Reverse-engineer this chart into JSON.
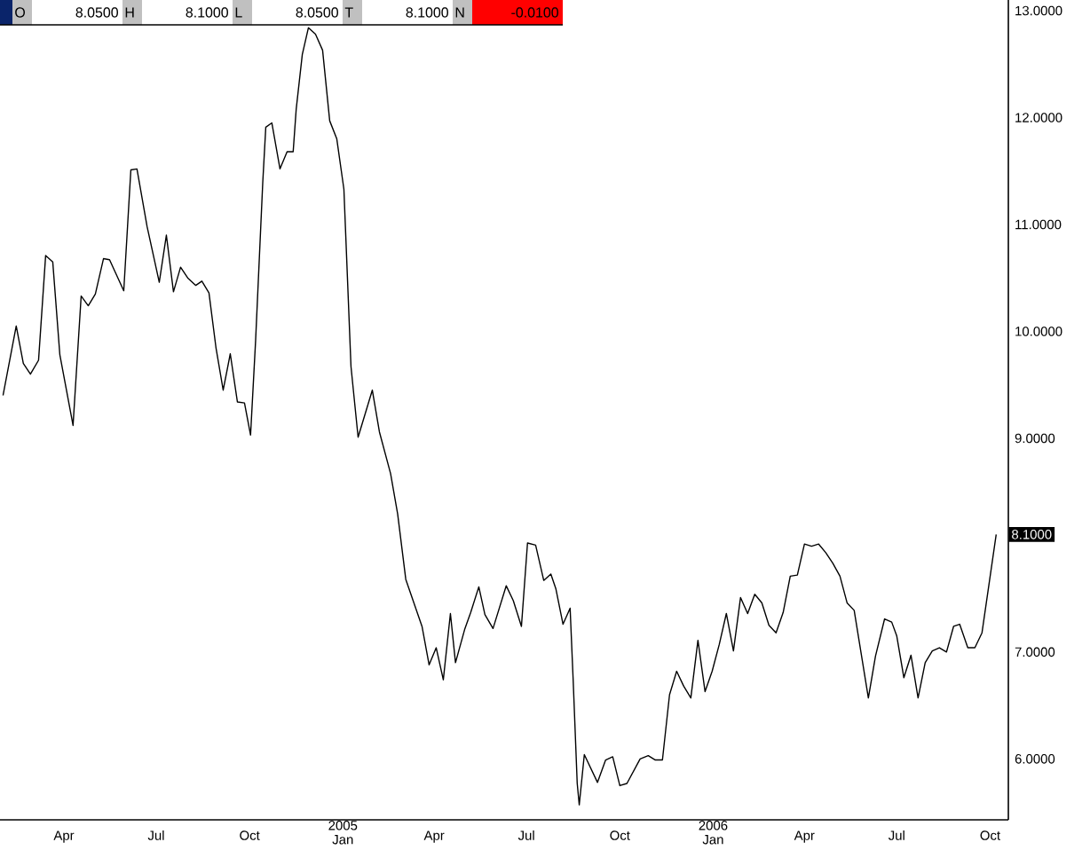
{
  "chart_data": {
    "type": "line",
    "x": [
      "2004-02-01",
      "2004-02-14",
      "2004-02-21",
      "2004-02-28",
      "2004-03-07",
      "2004-03-14",
      "2004-03-21",
      "2004-03-28",
      "2004-04-10",
      "2004-04-18",
      "2004-04-25",
      "2004-05-02",
      "2004-05-10",
      "2004-05-16",
      "2004-05-30",
      "2004-06-06",
      "2004-06-12",
      "2004-06-22",
      "2004-07-04",
      "2004-07-11",
      "2004-07-18",
      "2004-07-25",
      "2004-08-01",
      "2004-08-09",
      "2004-08-15",
      "2004-08-22",
      "2004-08-29",
      "2004-09-05",
      "2004-09-12",
      "2004-09-19",
      "2004-09-26",
      "2004-10-02",
      "2004-10-07",
      "2004-10-14",
      "2004-10-17",
      "2004-10-23",
      "2004-10-31",
      "2004-11-07",
      "2004-11-13",
      "2004-11-16",
      "2004-11-22",
      "2004-11-28",
      "2004-12-05",
      "2004-12-12",
      "2004-12-19",
      "2004-12-26",
      "2005-01-02",
      "2005-01-09",
      "2005-01-16",
      "2005-01-30",
      "2005-02-06",
      "2005-02-17",
      "2005-02-24",
      "2005-03-04",
      "2005-03-20",
      "2005-03-27",
      "2005-04-03",
      "2005-04-10",
      "2005-04-17",
      "2005-04-22",
      "2005-05-01",
      "2005-05-07",
      "2005-05-15",
      "2005-05-21",
      "2005-05-29",
      "2005-06-11",
      "2005-06-18",
      "2005-06-26",
      "2005-07-02",
      "2005-07-10",
      "2005-07-18",
      "2005-07-25",
      "2005-07-30",
      "2005-08-06",
      "2005-08-13",
      "2005-08-16",
      "2005-08-20",
      "2005-08-22",
      "2005-08-27",
      "2005-09-09",
      "2005-09-17",
      "2005-09-24",
      "2005-10-01",
      "2005-10-08",
      "2005-10-21",
      "2005-10-29",
      "2005-11-05",
      "2005-11-12",
      "2005-11-19",
      "2005-11-26",
      "2005-12-03",
      "2005-12-10",
      "2005-12-17",
      "2005-12-24",
      "2005-12-31",
      "2006-01-07",
      "2006-01-14",
      "2006-01-21",
      "2006-01-28",
      "2006-02-04",
      "2006-02-11",
      "2006-02-18",
      "2006-02-25",
      "2006-03-04",
      "2006-03-11",
      "2006-03-18",
      "2006-03-25",
      "2006-04-01",
      "2006-04-08",
      "2006-04-15",
      "2006-04-22",
      "2006-04-29",
      "2006-05-06",
      "2006-05-13",
      "2006-05-20",
      "2006-06-03",
      "2006-06-10",
      "2006-06-19",
      "2006-06-26",
      "2006-07-01",
      "2006-07-08",
      "2006-07-15",
      "2006-07-22",
      "2006-07-29",
      "2006-08-05",
      "2006-08-12",
      "2006-08-19",
      "2006-08-26",
      "2006-09-01",
      "2006-09-09",
      "2006-09-16",
      "2006-09-23",
      "2006-10-07"
    ],
    "series": [
      {
        "color": "#000000",
        "values": [
          9.4,
          10.05,
          9.7,
          9.6,
          9.73,
          10.71,
          10.65,
          9.78,
          9.12,
          10.33,
          10.24,
          10.35,
          10.68,
          10.67,
          10.38,
          11.51,
          11.52,
          10.98,
          10.46,
          10.9,
          10.37,
          10.6,
          10.5,
          10.43,
          10.47,
          10.36,
          9.84,
          9.45,
          9.79,
          9.34,
          9.33,
          9.03,
          9.92,
          11.39,
          11.91,
          11.95,
          11.52,
          11.68,
          11.68,
          12.08,
          12.59,
          12.84,
          12.78,
          12.63,
          11.97,
          11.8,
          11.33,
          9.67,
          9.01,
          9.45,
          9.06,
          8.67,
          8.29,
          7.68,
          7.24,
          6.88,
          7.04,
          6.74,
          7.36,
          6.9,
          7.21,
          7.37,
          7.61,
          7.35,
          7.22,
          7.62,
          7.48,
          7.24,
          8.02,
          8.0,
          7.67,
          7.73,
          7.59,
          7.26,
          7.41,
          6.74,
          5.77,
          5.57,
          6.04,
          5.78,
          5.99,
          6.02,
          5.75,
          5.77,
          6.0,
          6.03,
          5.99,
          5.99,
          6.6,
          6.82,
          6.68,
          6.57,
          7.11,
          6.63,
          6.82,
          7.07,
          7.36,
          7.01,
          7.51,
          7.36,
          7.54,
          7.46,
          7.25,
          7.18,
          7.37,
          7.71,
          7.72,
          8.01,
          7.99,
          8.01,
          7.93,
          7.83,
          7.71,
          7.46,
          7.39,
          6.57,
          6.96,
          7.31,
          7.28,
          7.15,
          6.76,
          6.97,
          6.57,
          6.9,
          7.01,
          7.04,
          7.0,
          7.24,
          7.26,
          7.04,
          7.04,
          7.18,
          8.1
        ]
      }
    ],
    "xlim": [
      "2004-01-29",
      "2006-10-19"
    ],
    "xticks": [
      {
        "value": "2004-04-01",
        "label": "Apr"
      },
      {
        "value": "2004-07-01",
        "label": "Jul"
      },
      {
        "value": "2004-10-01",
        "label": "Oct"
      },
      {
        "value": "2005-01-01",
        "label": "2005 Jan"
      },
      {
        "value": "2005-04-01",
        "label": "Apr"
      },
      {
        "value": "2005-07-01",
        "label": "Jul"
      },
      {
        "value": "2005-10-01",
        "label": "Oct"
      },
      {
        "value": "2006-01-01",
        "label": "2006 Jan"
      },
      {
        "value": "2006-04-01",
        "label": "Apr"
      },
      {
        "value": "2006-07-01",
        "label": "Jul"
      },
      {
        "value": "2006-10-01",
        "label": "Oct"
      }
    ],
    "ylim": [
      5.43,
      13.1
    ],
    "yticks": [
      {
        "value": 6,
        "label": "6.0000"
      },
      {
        "value": 7,
        "label": "7.0000"
      },
      {
        "value": 9,
        "label": "9.0000"
      },
      {
        "value": 10,
        "label": "10.0000"
      },
      {
        "value": 11,
        "label": "11.0000"
      },
      {
        "value": 12,
        "label": "12.0000"
      },
      {
        "value": 13,
        "label": "13.0000"
      }
    ],
    "annotations": [
      {
        "text": "8.1000",
        "x": "2006-10-07",
        "y": 8.1
      },
      "O",
      "8.0500",
      "H",
      "8.1000",
      "L",
      "8.0500",
      "T",
      "8.1000",
      "N",
      "-0.0100"
    ]
  }
}
